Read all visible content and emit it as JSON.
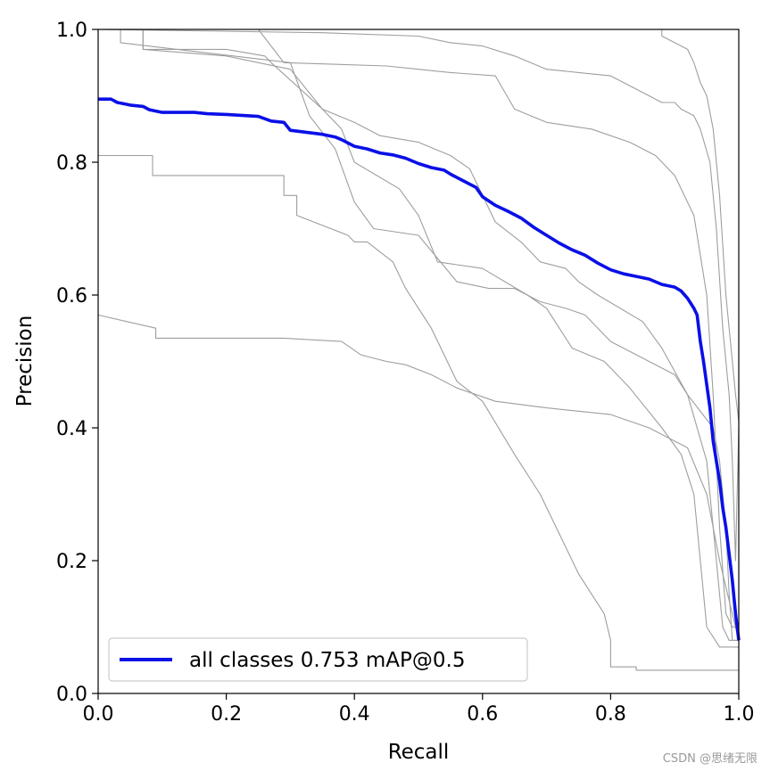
{
  "chart_data": {
    "type": "line",
    "title": "",
    "xlabel": "Recall",
    "ylabel": "Precision",
    "xlim": [
      0,
      1
    ],
    "ylim": [
      0,
      1
    ],
    "xticks": [
      "0.0",
      "0.2",
      "0.4",
      "0.6",
      "0.8",
      "1.0"
    ],
    "yticks": [
      "0.0",
      "0.2",
      "0.4",
      "0.6",
      "0.8",
      "1.0"
    ],
    "grid": false,
    "legend_position": "lower-left",
    "series": [
      {
        "name": "",
        "color": "#9e9e9e",
        "x": [
          0.0,
          0.0,
          0.09,
          0.09,
          0.29,
          0.29,
          0.38,
          0.41,
          0.45,
          0.48,
          0.52,
          0.56,
          0.62,
          0.7,
          0.8,
          0.86,
          0.92,
          0.95,
          0.97,
          0.99,
          1.0
        ],
        "y": [
          0.57,
          0.57,
          0.55,
          0.535,
          0.535,
          0.535,
          0.53,
          0.51,
          0.5,
          0.495,
          0.48,
          0.46,
          0.44,
          0.43,
          0.42,
          0.4,
          0.37,
          0.3,
          0.2,
          0.12,
          0.08
        ]
      },
      {
        "name": "",
        "color": "#9e9e9e",
        "x": [
          0.0,
          0.03,
          0.03,
          0.085,
          0.085,
          0.19,
          0.29,
          0.29,
          0.31,
          0.31,
          0.39,
          0.4,
          0.42,
          0.46,
          0.48,
          0.52,
          0.56,
          0.6,
          0.65,
          0.69,
          0.72,
          0.75,
          0.79,
          0.8,
          0.8,
          0.84,
          0.84,
          1.0
        ],
        "y": [
          0.81,
          0.81,
          0.81,
          0.81,
          0.78,
          0.78,
          0.78,
          0.75,
          0.75,
          0.72,
          0.69,
          0.68,
          0.68,
          0.65,
          0.61,
          0.55,
          0.47,
          0.44,
          0.36,
          0.3,
          0.24,
          0.18,
          0.12,
          0.08,
          0.04,
          0.04,
          0.035,
          0.035
        ]
      },
      {
        "name": "",
        "color": "#9e9e9e",
        "x": [
          0.0,
          0.035,
          0.035,
          0.3,
          0.33,
          0.37,
          0.4,
          0.43,
          0.5,
          0.56,
          0.61,
          0.65,
          0.69,
          0.73,
          0.76,
          0.8,
          0.86,
          0.9,
          0.92,
          0.96,
          0.97,
          0.98,
          0.985,
          0.99,
          1.0
        ],
        "y": [
          1.0,
          1.0,
          0.98,
          0.95,
          0.87,
          0.82,
          0.74,
          0.7,
          0.69,
          0.62,
          0.61,
          0.61,
          0.59,
          0.58,
          0.57,
          0.53,
          0.5,
          0.48,
          0.45,
          0.4,
          0.35,
          0.25,
          0.15,
          0.08,
          0.08
        ]
      },
      {
        "name": "",
        "color": "#9e9e9e",
        "x": [
          0.0,
          0.07,
          0.07,
          0.2,
          0.3,
          0.35,
          0.38,
          0.4,
          0.47,
          0.5,
          0.53,
          0.6,
          0.67,
          0.7,
          0.74,
          0.79,
          0.81,
          0.83,
          0.88,
          0.91,
          0.93,
          0.94,
          0.95,
          0.97,
          0.98,
          0.99,
          1.0
        ],
        "y": [
          1.0,
          1.0,
          0.97,
          0.96,
          0.94,
          0.88,
          0.85,
          0.8,
          0.76,
          0.72,
          0.65,
          0.64,
          0.6,
          0.58,
          0.52,
          0.5,
          0.48,
          0.46,
          0.4,
          0.36,
          0.3,
          0.2,
          0.1,
          0.07,
          0.07,
          0.07,
          0.07
        ]
      },
      {
        "name": "",
        "color": "#9e9e9e",
        "x": [
          0.0,
          0.07,
          0.07,
          0.2,
          0.26,
          0.27,
          0.35,
          0.4,
          0.44,
          0.5,
          0.55,
          0.58,
          0.62,
          0.66,
          0.69,
          0.73,
          0.75,
          0.78,
          0.85,
          0.88,
          0.92,
          0.95,
          0.965,
          0.975,
          0.985,
          0.99,
          1.0
        ],
        "y": [
          1.0,
          1.0,
          0.97,
          0.97,
          0.96,
          0.95,
          0.88,
          0.86,
          0.84,
          0.83,
          0.81,
          0.79,
          0.71,
          0.68,
          0.65,
          0.64,
          0.62,
          0.6,
          0.56,
          0.52,
          0.45,
          0.35,
          0.2,
          0.1,
          0.08,
          0.08,
          0.08
        ]
      },
      {
        "name": "",
        "color": "#9e9e9e",
        "x": [
          0.0,
          0.25,
          0.29,
          0.45,
          0.5,
          0.55,
          0.62,
          0.65,
          0.7,
          0.77,
          0.83,
          0.87,
          0.9,
          0.93,
          0.95,
          0.96,
          0.97,
          0.98,
          0.99,
          1.0
        ],
        "y": [
          1.0,
          1.0,
          0.95,
          0.945,
          0.94,
          0.935,
          0.93,
          0.88,
          0.86,
          0.85,
          0.83,
          0.81,
          0.78,
          0.72,
          0.6,
          0.45,
          0.25,
          0.12,
          0.1,
          0.1
        ]
      },
      {
        "name": "",
        "color": "#9e9e9e",
        "x": [
          0.0,
          0.35,
          0.5,
          0.55,
          0.6,
          0.65,
          0.7,
          0.75,
          0.8,
          0.86,
          0.88,
          0.9,
          0.91,
          0.93,
          0.94,
          0.955,
          0.965,
          0.975,
          0.985,
          0.99,
          0.995,
          1.0
        ],
        "y": [
          1.0,
          0.995,
          0.99,
          0.98,
          0.975,
          0.96,
          0.94,
          0.935,
          0.93,
          0.9,
          0.89,
          0.89,
          0.88,
          0.87,
          0.85,
          0.8,
          0.7,
          0.55,
          0.45,
          0.35,
          0.2,
          0.4
        ]
      },
      {
        "name": "",
        "color": "#9e9e9e",
        "x": [
          0.0,
          0.88,
          0.88,
          0.9,
          0.92,
          0.93,
          0.94,
          0.95,
          0.96,
          0.965,
          0.97,
          0.98,
          0.99,
          0.995,
          1.0
        ],
        "y": [
          1.0,
          1.0,
          0.99,
          0.98,
          0.97,
          0.95,
          0.92,
          0.9,
          0.85,
          0.8,
          0.75,
          0.6,
          0.5,
          0.45,
          0.41
        ]
      },
      {
        "name": "all classes 0.753 mAP@0.5",
        "color": "#0a10e6",
        "x": [
          0.0,
          0.02,
          0.03,
          0.04,
          0.05,
          0.07,
          0.08,
          0.09,
          0.1,
          0.15,
          0.17,
          0.2,
          0.25,
          0.27,
          0.29,
          0.3,
          0.35,
          0.37,
          0.38,
          0.4,
          0.42,
          0.44,
          0.46,
          0.48,
          0.5,
          0.52,
          0.54,
          0.55,
          0.57,
          0.59,
          0.6,
          0.62,
          0.64,
          0.66,
          0.68,
          0.7,
          0.72,
          0.74,
          0.76,
          0.78,
          0.8,
          0.82,
          0.84,
          0.86,
          0.88,
          0.9,
          0.91,
          0.92,
          0.93,
          0.935,
          0.94,
          0.945,
          0.95,
          0.955,
          0.96,
          0.965,
          0.97,
          0.975,
          0.98,
          0.985,
          0.99,
          0.995,
          1.0
        ],
        "y": [
          0.895,
          0.895,
          0.89,
          0.888,
          0.886,
          0.884,
          0.879,
          0.877,
          0.875,
          0.875,
          0.873,
          0.872,
          0.869,
          0.862,
          0.86,
          0.848,
          0.842,
          0.838,
          0.834,
          0.824,
          0.82,
          0.814,
          0.811,
          0.806,
          0.798,
          0.792,
          0.788,
          0.782,
          0.772,
          0.762,
          0.748,
          0.735,
          0.726,
          0.716,
          0.702,
          0.69,
          0.678,
          0.668,
          0.66,
          0.648,
          0.638,
          0.632,
          0.628,
          0.624,
          0.616,
          0.612,
          0.606,
          0.595,
          0.58,
          0.57,
          0.53,
          0.5,
          0.465,
          0.43,
          0.38,
          0.35,
          0.32,
          0.28,
          0.25,
          0.21,
          0.17,
          0.12,
          0.08
        ]
      }
    ]
  },
  "watermark": "CSDN @思绪无限"
}
